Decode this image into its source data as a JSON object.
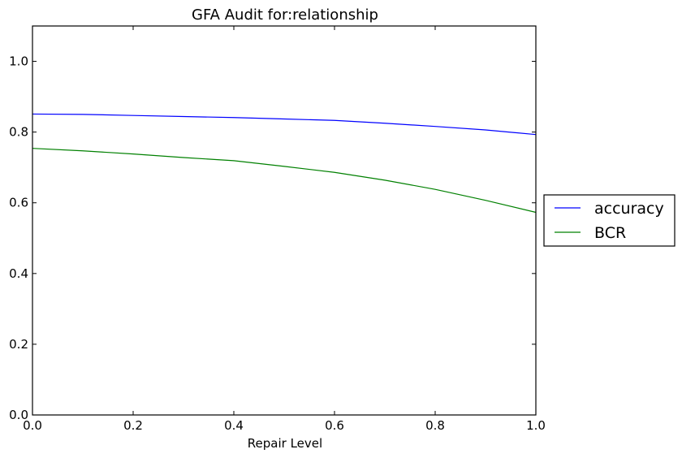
{
  "chart_data": {
    "type": "line",
    "title": "GFA Audit for:relationship",
    "xlabel": "Repair Level",
    "ylabel": "",
    "xlim": [
      0.0,
      1.0
    ],
    "ylim": [
      0.0,
      1.1
    ],
    "xticks": [
      "0.0",
      "0.2",
      "0.4",
      "0.6",
      "0.8",
      "1.0"
    ],
    "yticks": [
      "0.0",
      "0.2",
      "0.4",
      "0.6",
      "0.8",
      "1.0"
    ],
    "grid": false,
    "legend_position": "outside right",
    "series": [
      {
        "name": "accuracy",
        "color": "#0000ff",
        "x": [
          0.0,
          0.1,
          0.2,
          0.3,
          0.4,
          0.5,
          0.6,
          0.7,
          0.8,
          0.9,
          1.0
        ],
        "y": [
          0.851,
          0.85,
          0.847,
          0.844,
          0.841,
          0.837,
          0.833,
          0.825,
          0.816,
          0.806,
          0.793
        ]
      },
      {
        "name": "BCR",
        "color": "#008000",
        "x": [
          0.0,
          0.1,
          0.2,
          0.3,
          0.4,
          0.5,
          0.6,
          0.7,
          0.8,
          0.9,
          1.0
        ],
        "y": [
          0.754,
          0.747,
          0.738,
          0.728,
          0.719,
          0.703,
          0.686,
          0.664,
          0.638,
          0.607,
          0.573
        ]
      }
    ]
  }
}
